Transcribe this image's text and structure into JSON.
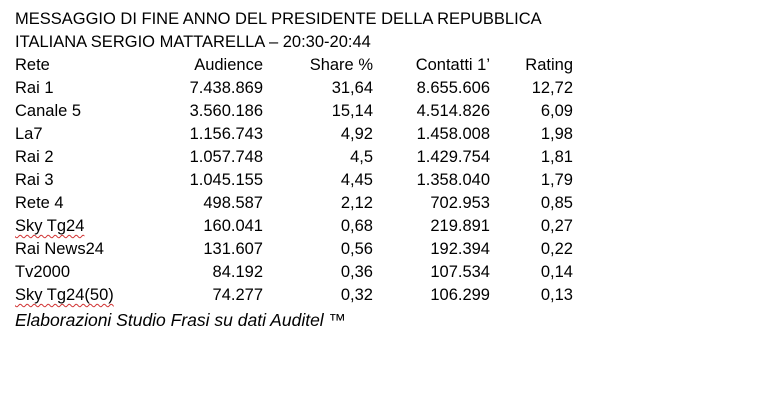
{
  "title_lines": [
    "MESSAGGIO DI FINE ANNO DEL PRESIDENTE DELLA REPUBBLICA",
    "ITALIANA SERGIO MATTARELLA – 20:30-20:44"
  ],
  "table": {
    "headers": [
      "Rete",
      "Audience",
      "Share %",
      "Contatti 1’",
      "Rating"
    ],
    "rows": [
      [
        "Rai 1",
        "7.438.869",
        "31,64",
        "8.655.606",
        "12,72"
      ],
      [
        "Canale 5",
        "3.560.186",
        "15,14",
        "4.514.826",
        "6,09"
      ],
      [
        "La7",
        "1.156.743",
        "4,92",
        "1.458.008",
        "1,98"
      ],
      [
        "Rai 2",
        "1.057.748",
        "4,5",
        "1.429.754",
        "1,81"
      ],
      [
        "Rai 3",
        "1.045.155",
        "4,45",
        "1.358.040",
        "1,79"
      ],
      [
        "Rete 4",
        "498.587",
        "2,12",
        "702.953",
        "0,85"
      ],
      [
        "Sky Tg24",
        "160.041",
        "0,68",
        "219.891",
        "0,27"
      ],
      [
        "Rai News24",
        "131.607",
        "0,56",
        "192.394",
        "0,22"
      ],
      [
        "Tv2000",
        "84.192",
        "0,36",
        "107.534",
        "0,14"
      ],
      [
        "Sky Tg24(50)",
        "74.277",
        "0,32",
        "106.299",
        "0,13"
      ]
    ]
  },
  "footer": "Elaborazioni Studio Frasi su dati Auditel ™",
  "colors": {
    "text": "#000000",
    "background": "#ffffff",
    "spellcheck_underline": "#d03030"
  }
}
